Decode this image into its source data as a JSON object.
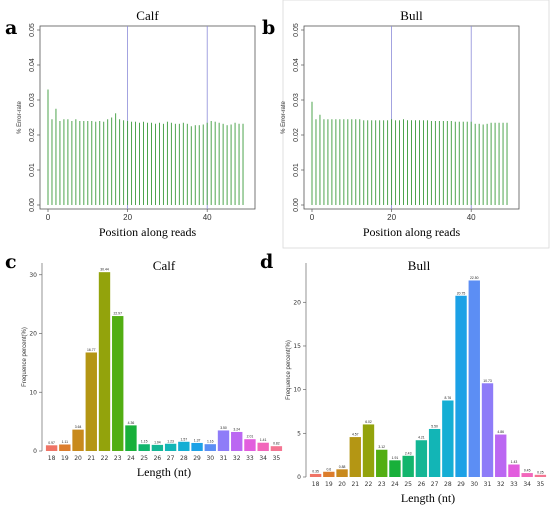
{
  "panels": [
    {
      "letter": "a",
      "title": "Calf"
    },
    {
      "letter": "b",
      "title": "Bull"
    },
    {
      "letter": "c",
      "title": "Calf"
    },
    {
      "letter": "d",
      "title": "Bull"
    }
  ],
  "chart_data": [
    {
      "type": "bar",
      "panel": "a",
      "title": "Calf",
      "xlabel": "Position along reads",
      "ylabel": "% Error-rate",
      "xlim": [
        0,
        50
      ],
      "ylim": [
        0,
        0.05
      ],
      "yticks": [
        0.0,
        0.01,
        0.02,
        0.03,
        0.04,
        0.05
      ],
      "xticks": [
        0,
        20,
        40
      ],
      "vlines": [
        20,
        40
      ],
      "color": "#3a9a3a",
      "x": [
        0,
        1,
        2,
        3,
        4,
        5,
        6,
        7,
        8,
        9,
        10,
        11,
        12,
        13,
        14,
        15,
        16,
        17,
        18,
        19,
        20,
        21,
        22,
        23,
        24,
        25,
        26,
        27,
        28,
        29,
        30,
        31,
        32,
        33,
        34,
        35,
        36,
        37,
        38,
        39,
        40,
        41,
        42,
        43,
        44,
        45,
        46,
        47,
        48,
        49
      ],
      "values": [
        0.033,
        0.0245,
        0.0275,
        0.024,
        0.0245,
        0.0245,
        0.024,
        0.0245,
        0.024,
        0.024,
        0.024,
        0.024,
        0.0238,
        0.024,
        0.0238,
        0.0245,
        0.025,
        0.0262,
        0.0245,
        0.0242,
        0.024,
        0.0238,
        0.0238,
        0.0235,
        0.0238,
        0.0235,
        0.0235,
        0.0232,
        0.0235,
        0.0232,
        0.0238,
        0.0235,
        0.0232,
        0.0232,
        0.0235,
        0.0232,
        0.0225,
        0.0228,
        0.0228,
        0.023,
        0.0235,
        0.024,
        0.0238,
        0.0235,
        0.0232,
        0.0228,
        0.023,
        0.0235,
        0.0232,
        0.0232
      ]
    },
    {
      "type": "bar",
      "panel": "b",
      "title": "Bull",
      "xlabel": "Position along reads",
      "ylabel": "% Error-rate",
      "xlim": [
        0,
        50
      ],
      "ylim": [
        0,
        0.05
      ],
      "yticks": [
        0.0,
        0.01,
        0.02,
        0.03,
        0.04,
        0.05
      ],
      "xticks": [
        0,
        20,
        40
      ],
      "vlines": [
        20,
        40
      ],
      "color": "#3a9a3a",
      "x": [
        0,
        1,
        2,
        3,
        4,
        5,
        6,
        7,
        8,
        9,
        10,
        11,
        12,
        13,
        14,
        15,
        16,
        17,
        18,
        19,
        20,
        21,
        22,
        23,
        24,
        25,
        26,
        27,
        28,
        29,
        30,
        31,
        32,
        33,
        34,
        35,
        36,
        37,
        38,
        39,
        40,
        41,
        42,
        43,
        44,
        45,
        46,
        47,
        48,
        49
      ],
      "values": [
        0.0295,
        0.0245,
        0.0258,
        0.0245,
        0.0245,
        0.0245,
        0.0245,
        0.0245,
        0.0245,
        0.0245,
        0.0245,
        0.0245,
        0.0245,
        0.0242,
        0.0242,
        0.0242,
        0.0242,
        0.0242,
        0.0242,
        0.0242,
        0.0245,
        0.0242,
        0.0242,
        0.0245,
        0.0242,
        0.0242,
        0.0242,
        0.0242,
        0.0242,
        0.0242,
        0.024,
        0.024,
        0.024,
        0.024,
        0.024,
        0.024,
        0.0238,
        0.0238,
        0.0238,
        0.0238,
        0.0238,
        0.0232,
        0.0232,
        0.023,
        0.0232,
        0.0235,
        0.0235,
        0.0235,
        0.0235,
        0.0235
      ]
    },
    {
      "type": "bar",
      "panel": "c",
      "title": "Calf",
      "xlabel": "Length (nt)",
      "ylabel": "Frequence percent(%)",
      "ylim": [
        0,
        32
      ],
      "yticks": [
        0,
        10,
        20,
        30
      ],
      "categories": [
        "18",
        "19",
        "20",
        "21",
        "22",
        "23",
        "24",
        "25",
        "26",
        "27",
        "28",
        "29",
        "30",
        "31",
        "32",
        "33",
        "34",
        "35"
      ],
      "values": [
        0.97,
        1.11,
        3.64,
        16.77,
        30.44,
        22.97,
        4.36,
        1.15,
        1.04,
        1.23,
        1.57,
        1.37,
        1.16,
        3.5,
        3.24,
        2.01,
        1.41,
        0.82
      ],
      "data_labels": [
        "0.97",
        "1.11",
        "3.64",
        "16.77",
        "30.44",
        "22.97",
        "4.36",
        "1.15",
        "1.04",
        "1.23",
        "1.57",
        "1.37",
        "1.16",
        "3.50",
        "3.24",
        "2.01",
        "1.41",
        "0.82"
      ],
      "colors": [
        "#f07466",
        "#dc7d2c",
        "#c88a1c",
        "#b49614",
        "#93a30c",
        "#52ae12",
        "#18b03a",
        "#12b56c",
        "#14b695",
        "#12b5b6",
        "#14aed4",
        "#1ca1e6",
        "#5c8ef4",
        "#8e7cf8",
        "#bb67f2",
        "#e25dde",
        "#f267bb",
        "#f47592"
      ]
    },
    {
      "type": "bar",
      "panel": "d",
      "title": "Bull",
      "xlabel": "Length (nt)",
      "ylabel": "Frequence percent(%)",
      "ylim": [
        0,
        24.5
      ],
      "yticks": [
        0,
        5,
        10,
        15,
        20
      ],
      "categories": [
        "18",
        "19",
        "20",
        "21",
        "22",
        "23",
        "24",
        "25",
        "26",
        "27",
        "28",
        "29",
        "30",
        "31",
        "32",
        "33",
        "34",
        "35"
      ],
      "values": [
        0.35,
        0.6,
        0.88,
        4.57,
        6.02,
        3.12,
        1.91,
        2.43,
        4.21,
        5.5,
        8.76,
        20.75,
        22.5,
        10.73,
        4.86,
        1.43,
        0.45,
        0.25
      ],
      "data_labels": [
        "0.35",
        "0.6",
        "0.88",
        "4.57",
        "6.02",
        "3.12",
        "1.91",
        "2.43",
        "4.21",
        "5.50",
        "8.76",
        "20.75",
        "22.50",
        "10.73",
        "4.86",
        "1.43",
        "0.45",
        "0.25"
      ],
      "colors": [
        "#f07466",
        "#dc7d2c",
        "#c88a1c",
        "#b49614",
        "#93a30c",
        "#52ae12",
        "#18b03a",
        "#12b56c",
        "#14b695",
        "#12b5b6",
        "#14aed4",
        "#1ca1e6",
        "#5c8ef4",
        "#8e7cf8",
        "#bb67f2",
        "#e25dde",
        "#f267bb",
        "#f47592"
      ]
    }
  ]
}
